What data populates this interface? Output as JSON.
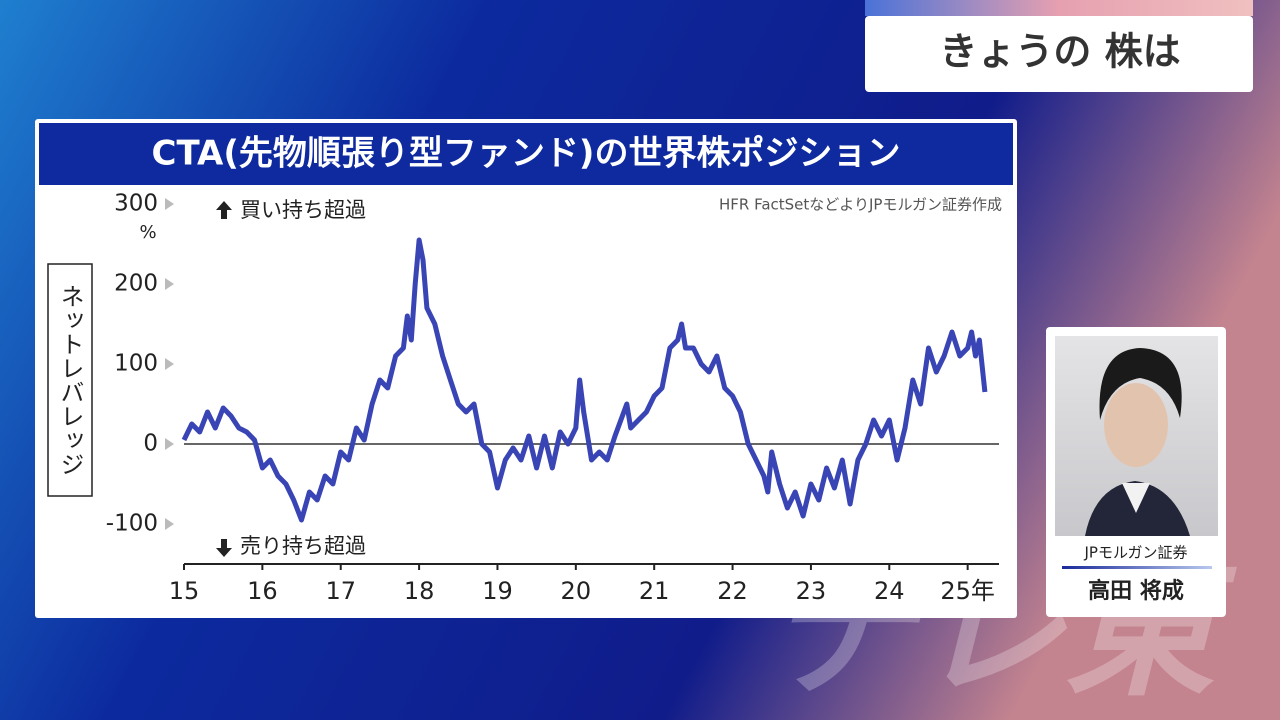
{
  "header": {
    "title": "きょうの 株は"
  },
  "chart_data": {
    "type": "line",
    "title": "CTA(先物順張り型ファンド)の世界株ポジション",
    "y_label": "ネットレバレッジ",
    "y_unit": "%",
    "source": "HFR FactSetなどよりJPモルガン証券作成",
    "annotations": [
      "買い持ち超過",
      "売り持ち超過"
    ],
    "xlim": [
      2015,
      2025.4
    ],
    "xticks": [
      {
        "value": 2015,
        "label": "15"
      },
      {
        "value": 2016,
        "label": "16"
      },
      {
        "value": 2017,
        "label": "17"
      },
      {
        "value": 2018,
        "label": "18"
      },
      {
        "value": 2019,
        "label": "19"
      },
      {
        "value": 2020,
        "label": "20"
      },
      {
        "value": 2021,
        "label": "21"
      },
      {
        "value": 2022,
        "label": "22"
      },
      {
        "value": 2023,
        "label": "23"
      },
      {
        "value": 2024,
        "label": "24"
      },
      {
        "value": 2025,
        "label": "25年"
      }
    ],
    "ylim": [
      -150,
      300
    ],
    "yticks": [
      -100,
      0,
      100,
      200,
      300
    ],
    "reference_line": 0,
    "series": [
      {
        "name": "ネットレバレッジ",
        "color": "#3a45b5",
        "x": [
          2015.0,
          2015.1,
          2015.2,
          2015.3,
          2015.4,
          2015.5,
          2015.6,
          2015.7,
          2015.8,
          2015.9,
          2016.0,
          2016.1,
          2016.2,
          2016.3,
          2016.4,
          2016.5,
          2016.6,
          2016.7,
          2016.8,
          2016.9,
          2017.0,
          2017.1,
          2017.2,
          2017.3,
          2017.4,
          2017.5,
          2017.6,
          2017.7,
          2017.8,
          2017.85,
          2017.9,
          2017.95,
          2018.0,
          2018.05,
          2018.1,
          2018.2,
          2018.3,
          2018.4,
          2018.5,
          2018.6,
          2018.7,
          2018.8,
          2018.9,
          2019.0,
          2019.1,
          2019.2,
          2019.3,
          2019.4,
          2019.5,
          2019.6,
          2019.7,
          2019.8,
          2019.9,
          2020.0,
          2020.05,
          2020.1,
          2020.2,
          2020.3,
          2020.4,
          2020.5,
          2020.65,
          2020.7,
          2020.8,
          2020.9,
          2021.0,
          2021.1,
          2021.2,
          2021.3,
          2021.35,
          2021.4,
          2021.5,
          2021.6,
          2021.7,
          2021.8,
          2021.9,
          2022.0,
          2022.1,
          2022.2,
          2022.3,
          2022.4,
          2022.45,
          2022.5,
          2022.6,
          2022.7,
          2022.8,
          2022.9,
          2023.0,
          2023.1,
          2023.2,
          2023.3,
          2023.4,
          2023.5,
          2023.6,
          2023.7,
          2023.8,
          2023.9,
          2024.0,
          2024.1,
          2024.2,
          2024.3,
          2024.4,
          2024.5,
          2024.6,
          2024.7,
          2024.8,
          2024.9,
          2025.0,
          2025.05,
          2025.1,
          2025.15,
          2025.22
        ],
        "values": [
          5,
          25,
          15,
          40,
          20,
          45,
          35,
          20,
          15,
          5,
          -30,
          -20,
          -40,
          -50,
          -70,
          -95,
          -60,
          -70,
          -40,
          -50,
          -10,
          -20,
          20,
          5,
          50,
          80,
          70,
          110,
          120,
          160,
          130,
          200,
          255,
          230,
          170,
          150,
          110,
          80,
          50,
          40,
          50,
          0,
          -10,
          -55,
          -20,
          -5,
          -20,
          10,
          -30,
          10,
          -30,
          15,
          0,
          20,
          80,
          40,
          -20,
          -10,
          -20,
          10,
          50,
          20,
          30,
          40,
          60,
          70,
          120,
          130,
          150,
          120,
          120,
          100,
          90,
          110,
          70,
          60,
          40,
          0,
          -20,
          -40,
          -60,
          -10,
          -50,
          -80,
          -60,
          -90,
          -50,
          -70,
          -30,
          -55,
          -20,
          -75,
          -20,
          0,
          30,
          10,
          30,
          -20,
          20,
          80,
          50,
          120,
          90,
          110,
          140,
          110,
          120,
          140,
          110,
          130,
          65
        ]
      }
    ]
  },
  "guest": {
    "company": "JPモルガン証券",
    "name": "高田 将成"
  },
  "watermark": "テレ東"
}
